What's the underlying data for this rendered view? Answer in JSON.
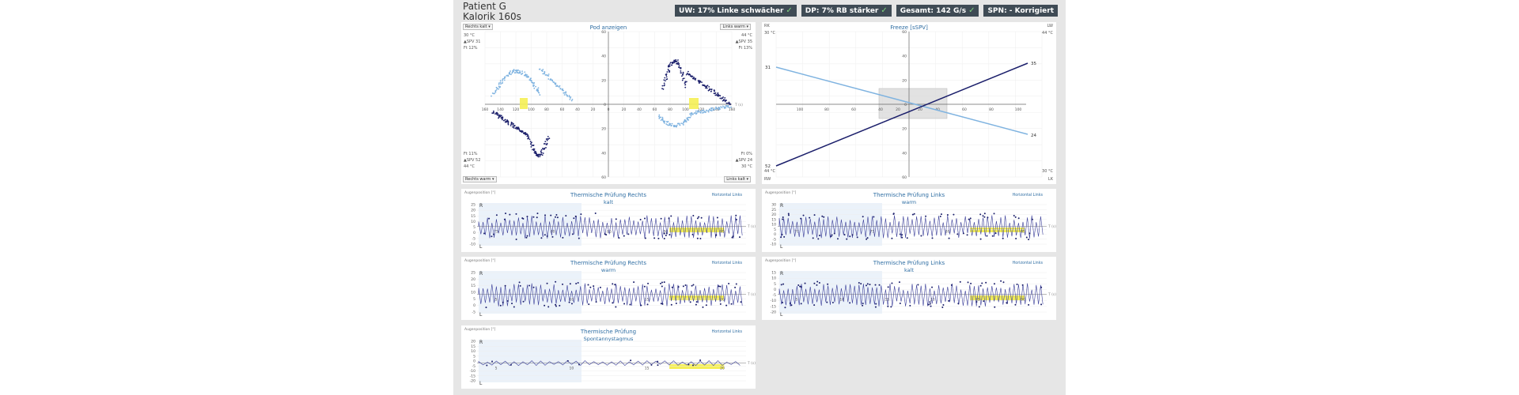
{
  "header": {
    "patient": "Patient G",
    "subtitle": "Kalorik 160s"
  },
  "badges": [
    {
      "label": "UW: 17% Linke schwächer"
    },
    {
      "label": "DP: 7% RB stärker"
    },
    {
      "label": "Gesamt: 142  G/s"
    },
    {
      "label": "SPN: - Korrigiert"
    }
  ],
  "pod": {
    "title": "Pod anzeigen",
    "dd_tl": "Rechts kalt",
    "dd_tr": "Links warm",
    "dd_bl": "Rechts warm",
    "dd_br": "Links kalt",
    "tl": [
      "30 °C",
      "▲SPV 31",
      "Ft 12%"
    ],
    "tr": [
      "44 °C",
      "▲SPV 35",
      "Ft 13%"
    ],
    "bl": [
      "Ft 11%",
      "▲SPV 52",
      "44 °C"
    ],
    "br": [
      "Ft 0%",
      "▲SPV 24",
      "30 °C"
    ],
    "xt": [
      "160",
      "140",
      "120",
      "100",
      "80",
      "60",
      "40",
      "20",
      "0",
      "20",
      "40",
      "60",
      "80",
      "100",
      "120",
      "140",
      "160"
    ],
    "yt": [
      "60",
      "40",
      "20",
      "0",
      "20",
      "40",
      "60"
    ]
  },
  "freeze": {
    "title": "Freeze [sSPV]",
    "rk": "RK",
    "lw": "LW",
    "rw": "RW",
    "lk": "LK",
    "tl": "30 °C",
    "tr": "44 °C",
    "bl": "44 °C",
    "br": "30 °C",
    "v_l_top": "31",
    "v_l_bot": "52",
    "v_r_top": "35",
    "v_r_bot": "24",
    "xt": [
      "100",
      "80",
      "60",
      "40",
      "20",
      "20",
      "40",
      "60",
      "80",
      "100"
    ],
    "yt": [
      "60",
      "40",
      "20",
      "0",
      "20",
      "40",
      "60"
    ]
  },
  "charts": [
    {
      "id": "rk",
      "title": "Thermische Prüfung Rechts",
      "sub": "kalt",
      "aug": "Augenposition [°]",
      "link": "Horizontal Links",
      "yt": [
        "25",
        "20",
        "15",
        "10",
        "5",
        "0",
        "-5",
        "-10"
      ],
      "xt": [
        "75",
        "80",
        "85",
        "90",
        "95"
      ]
    },
    {
      "id": "lw",
      "title": "Thermische Prüfung Links",
      "sub": "warm",
      "aug": "Augenposition [°]",
      "link": "Horizontal Links",
      "yt": [
        "30",
        "25",
        "20",
        "15",
        "10",
        "5",
        "0",
        "-5",
        "-10"
      ],
      "xt": [
        "70",
        "75",
        "80",
        "85"
      ]
    },
    {
      "id": "rw",
      "title": "Thermische Prüfung Rechts",
      "sub": "warm",
      "aug": "Augenposition [°]",
      "link": "Horizontal Links",
      "yt": [
        "25",
        "20",
        "15",
        "10",
        "5",
        "0",
        "-5"
      ],
      "xt": [
        "5",
        "10",
        "15",
        "20"
      ]
    },
    {
      "id": "lk",
      "title": "Thermische Prüfung Links",
      "sub": "kalt",
      "aug": "Augenposition [°]",
      "link": "Horizontal Links",
      "yt": [
        "15",
        "10",
        "5",
        "0",
        "-5",
        "-10",
        "-15",
        "-20"
      ],
      "xt": [
        "5",
        "10",
        "15",
        "20",
        "25",
        "30"
      ]
    },
    {
      "id": "sp",
      "title": "Thermische Prüfung",
      "sub": "Spontannystagmus",
      "aug": "Augenposition [°]",
      "link": "Horizontal Links",
      "yt": [
        "20",
        "15",
        "10",
        "5",
        "0",
        "-5",
        "-10",
        "-15",
        "-20"
      ],
      "xt": [
        "5",
        "10",
        "15",
        "20"
      ]
    }
  ],
  "axis": {
    "r": "R",
    "l": "L",
    "t": "T (s)"
  },
  "colors": {
    "light": "#7fb3e0",
    "dark": "#1b1f6b",
    "trace": "#3b3f9a",
    "highlight": "#f5ef55",
    "shade": "#dde9f6",
    "link": "#2f6ea3"
  }
}
